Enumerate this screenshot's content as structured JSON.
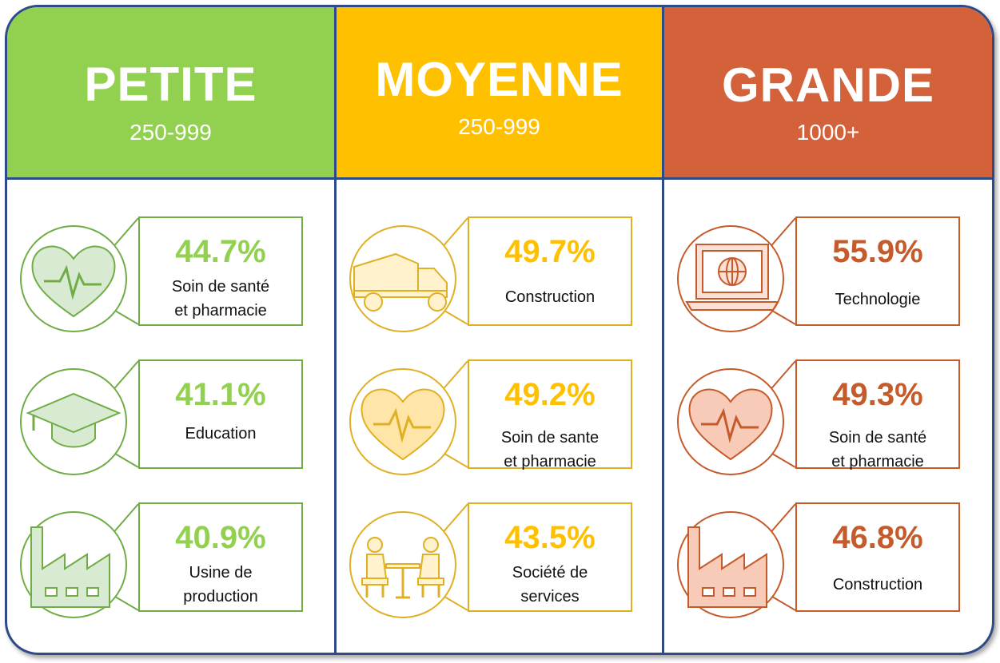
{
  "colors": {
    "border": "#2e4a87",
    "small": "#92d050",
    "medium": "#ffc000",
    "large": "#d3623a"
  },
  "columns": [
    {
      "title": "PETITE",
      "range": "250-999",
      "items": [
        {
          "percent": "44.7%",
          "line1": "Soin de santé",
          "line2": "et pharmacie",
          "icon": "heart-pulse-icon"
        },
        {
          "percent": "41.1%",
          "line1": "Education",
          "line2": "",
          "icon": "graduation-cap-icon"
        },
        {
          "percent": "40.9%",
          "line1": "Usine de",
          "line2": "production",
          "icon": "factory-icon"
        }
      ]
    },
    {
      "title": "MOYENNE",
      "range": "250-999",
      "items": [
        {
          "percent": "49.7%",
          "line1": "Construction",
          "line2": "",
          "icon": "truck-icon"
        },
        {
          "percent": "49.2%",
          "line1": "Soin de sante",
          "line2": "et pharmacie",
          "icon": "heart-pulse-icon"
        },
        {
          "percent": "43.5%",
          "line1": "Société de",
          "line2": "services",
          "icon": "meeting-icon"
        }
      ]
    },
    {
      "title": "GRANDE",
      "range": "1000+",
      "items": [
        {
          "percent": "55.9%",
          "line1": "Technologie",
          "line2": "",
          "icon": "laptop-globe-icon"
        },
        {
          "percent": "49.3%",
          "line1": "Soin de santé",
          "line2": "et pharmacie",
          "icon": "heart-pulse-icon"
        },
        {
          "percent": "46.8%",
          "line1": "Construction",
          "line2": "",
          "icon": "factory-icon"
        }
      ]
    }
  ]
}
